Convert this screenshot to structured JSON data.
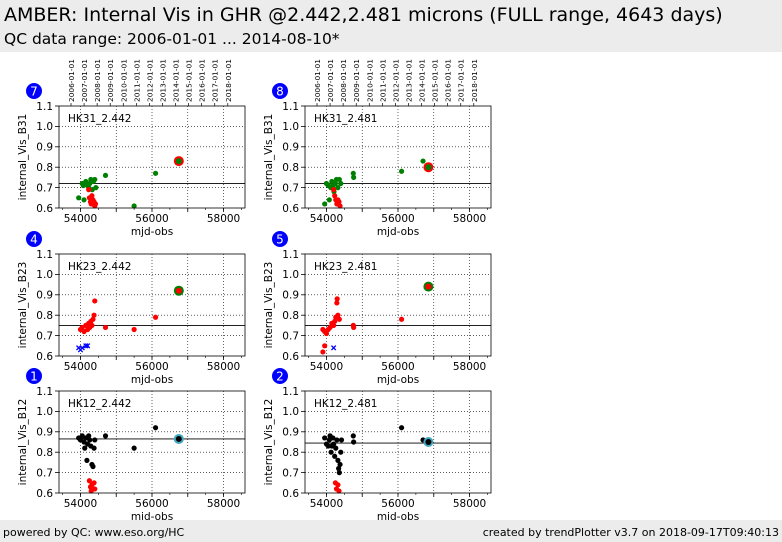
{
  "header": {
    "title": "AMBER: Internal Vis in GHR @2.442,2.481 microns (FULL range, 4643 days)",
    "subtitle": "QC data range: 2006-01-01 ... 2014-08-10*"
  },
  "footer": {
    "left": "powered by QC: www.eso.org/HC",
    "right": "created by trendPlotter v3.7 on 2018-09-17T09:40:13"
  },
  "colors": {
    "green": "#008000",
    "red": "#ff0000",
    "blue": "#0000ff",
    "black": "#000000",
    "cyan": "#40a8c0",
    "badge": "#0000ff"
  },
  "date_ticks": [
    {
      "label": "2006-01-01",
      "mjd": 53736
    },
    {
      "label": "2007-01-01",
      "mjd": 54101
    },
    {
      "label": "2008-01-01",
      "mjd": 54466
    },
    {
      "label": "2009-01-01",
      "mjd": 54832
    },
    {
      "label": "2010-01-01",
      "mjd": 55197
    },
    {
      "label": "2011-01-01",
      "mjd": 55562
    },
    {
      "label": "2012-01-01",
      "mjd": 55927
    },
    {
      "label": "2013-01-01",
      "mjd": 56293
    },
    {
      "label": "2014-01-01",
      "mjd": 56658
    },
    {
      "label": "2015-01-01",
      "mjd": 57023
    },
    {
      "label": "2016-01-01",
      "mjd": 57388
    },
    {
      "label": "2017-01-01",
      "mjd": 57754
    },
    {
      "label": "2018-01-01",
      "mjd": 58119
    }
  ],
  "chart_data": [
    {
      "type": "scatter",
      "badge": "7",
      "panel_label": "HK31_2.442",
      "xlabel": "mjd-obs",
      "ylabel": "internal_Vis_B31",
      "xlim": [
        53400,
        58600
      ],
      "ylim": [
        0.6,
        1.1
      ],
      "xticks": [
        54000,
        55000,
        56000,
        57000,
        58000
      ],
      "xtick_labels": [
        "54000",
        "",
        "56000",
        "",
        "58000"
      ],
      "yticks": [
        0.6,
        0.7,
        0.8,
        0.9,
        1.0,
        1.1
      ],
      "grid": true,
      "ref_line": 0.72,
      "series": [
        {
          "color": "green",
          "marker": "dot",
          "points": [
            [
              53950,
              0.65
            ],
            [
              54050,
              0.72
            ],
            [
              54080,
              0.71
            ],
            [
              54100,
              0.64
            ],
            [
              54120,
              0.72
            ],
            [
              54150,
              0.73
            ],
            [
              54180,
              0.72
            ],
            [
              54200,
              0.71
            ],
            [
              54230,
              0.7
            ],
            [
              54260,
              0.72
            ],
            [
              54290,
              0.74
            ],
            [
              54330,
              0.69
            ],
            [
              54360,
              0.73
            ],
            [
              54400,
              0.74
            ],
            [
              54430,
              0.7
            ],
            [
              54700,
              0.76
            ],
            [
              55500,
              0.61
            ],
            [
              56100,
              0.77
            ],
            [
              56700,
              0.83
            ]
          ]
        },
        {
          "color": "red",
          "marker": "dot",
          "points": [
            [
              54230,
              0.69
            ],
            [
              54250,
              0.65
            ],
            [
              54280,
              0.63
            ],
            [
              54300,
              0.62
            ],
            [
              54320,
              0.66
            ],
            [
              54350,
              0.64
            ],
            [
              54380,
              0.63
            ],
            [
              54400,
              0.61
            ],
            [
              54420,
              0.62
            ]
          ]
        },
        {
          "color": "red",
          "marker": "ring",
          "points": [
            [
              56750,
              0.83
            ]
          ]
        }
      ]
    },
    {
      "type": "scatter",
      "badge": "8",
      "panel_label": "HK31_2.481",
      "xlabel": "mjd-obs",
      "ylabel": "internal_Vis_B31",
      "xlim": [
        53400,
        58600
      ],
      "ylim": [
        0.6,
        1.1
      ],
      "xticks": [
        54000,
        55000,
        56000,
        57000,
        58000
      ],
      "xtick_labels": [
        "54000",
        "",
        "56000",
        "",
        "58000"
      ],
      "yticks": [
        0.6,
        0.7,
        0.8,
        0.9,
        1.0,
        1.1
      ],
      "grid": true,
      "ref_line": 0.72,
      "series": [
        {
          "color": "green",
          "marker": "dot",
          "points": [
            [
              53950,
              0.62
            ],
            [
              54000,
              0.72
            ],
            [
              54050,
              0.71
            ],
            [
              54080,
              0.64
            ],
            [
              54120,
              0.7
            ],
            [
              54150,
              0.73
            ],
            [
              54180,
              0.71
            ],
            [
              54210,
              0.68
            ],
            [
              54250,
              0.72
            ],
            [
              54280,
              0.74
            ],
            [
              54320,
              0.7
            ],
            [
              54360,
              0.74
            ],
            [
              54400,
              0.72
            ],
            [
              54750,
              0.77
            ],
            [
              54760,
              0.75
            ],
            [
              56100,
              0.78
            ],
            [
              56700,
              0.83
            ]
          ]
        },
        {
          "color": "red",
          "marker": "dot",
          "points": [
            [
              54200,
              0.69
            ],
            [
              54230,
              0.66
            ],
            [
              54260,
              0.64
            ],
            [
              54290,
              0.62
            ],
            [
              54320,
              0.64
            ],
            [
              54350,
              0.63
            ],
            [
              54380,
              0.61
            ]
          ]
        },
        {
          "color": "red",
          "marker": "ring",
          "points": [
            [
              56850,
              0.8
            ]
          ]
        }
      ]
    },
    {
      "type": "scatter",
      "badge": "4",
      "panel_label": "HK23_2.442",
      "xlabel": "mjd-obs",
      "ylabel": "internal_Vis_B23",
      "xlim": [
        53400,
        58600
      ],
      "ylim": [
        0.6,
        1.1
      ],
      "xticks": [
        54000,
        55000,
        56000,
        57000,
        58000
      ],
      "xtick_labels": [
        "54000",
        "",
        "56000",
        "",
        "58000"
      ],
      "yticks": [
        0.6,
        0.7,
        0.8,
        0.9,
        1.0,
        1.1
      ],
      "grid": true,
      "ref_line": 0.75,
      "series": [
        {
          "color": "red",
          "marker": "dot",
          "points": [
            [
              54000,
              0.73
            ],
            [
              54050,
              0.74
            ],
            [
              54100,
              0.72
            ],
            [
              54150,
              0.75
            ],
            [
              54200,
              0.73
            ],
            [
              54230,
              0.76
            ],
            [
              54260,
              0.74
            ],
            [
              54290,
              0.77
            ],
            [
              54320,
              0.75
            ],
            [
              54350,
              0.78
            ],
            [
              54380,
              0.8
            ],
            [
              54400,
              0.87
            ],
            [
              54700,
              0.74
            ],
            [
              55500,
              0.73
            ],
            [
              56100,
              0.79
            ]
          ]
        },
        {
          "color": "blue",
          "marker": "x",
          "points": [
            [
              53950,
              0.64
            ],
            [
              54000,
              0.63
            ],
            [
              54050,
              0.64
            ],
            [
              54150,
              0.65
            ],
            [
              54200,
              0.65
            ]
          ]
        },
        {
          "color": "green",
          "marker": "ring",
          "points": [
            [
              56750,
              0.92
            ]
          ]
        }
      ]
    },
    {
      "type": "scatter",
      "badge": "5",
      "panel_label": "HK23_2.481",
      "xlabel": "mjd-obs",
      "ylabel": "internal_Vis_B23",
      "xlim": [
        53400,
        58600
      ],
      "ylim": [
        0.6,
        1.1
      ],
      "xticks": [
        54000,
        55000,
        56000,
        57000,
        58000
      ],
      "xtick_labels": [
        "54000",
        "",
        "56000",
        "",
        "58000"
      ],
      "yticks": [
        0.6,
        0.7,
        0.8,
        0.9,
        1.0,
        1.1
      ],
      "grid": true,
      "ref_line": 0.75,
      "series": [
        {
          "color": "red",
          "marker": "dot",
          "points": [
            [
              53900,
              0.73
            ],
            [
              53950,
              0.72
            ],
            [
              54000,
              0.71
            ],
            [
              54050,
              0.73
            ],
            [
              54100,
              0.74
            ],
            [
              54150,
              0.76
            ],
            [
              54200,
              0.75
            ],
            [
              54230,
              0.77
            ],
            [
              54260,
              0.79
            ],
            [
              54290,
              0.86
            ],
            [
              54300,
              0.88
            ],
            [
              54320,
              0.8
            ],
            [
              54360,
              0.78
            ],
            [
              54750,
              0.75
            ],
            [
              54760,
              0.74
            ],
            [
              56100,
              0.78
            ]
          ]
        },
        {
          "color": "red",
          "marker": "dot",
          "points": [
            [
              53900,
              0.62
            ],
            [
              53950,
              0.65
            ]
          ]
        },
        {
          "color": "blue",
          "marker": "x",
          "points": [
            [
              54200,
              0.64
            ]
          ]
        },
        {
          "color": "green",
          "marker": "ring",
          "points": [
            [
              56850,
              0.94
            ]
          ]
        }
      ]
    },
    {
      "type": "scatter",
      "badge": "1",
      "panel_label": "HK12_2.442",
      "xlabel": "mjd-obs",
      "ylabel": "internal_Vis_B12",
      "xlim": [
        53400,
        58600
      ],
      "ylim": [
        0.6,
        1.1
      ],
      "xticks": [
        54000,
        55000,
        56000,
        57000,
        58000
      ],
      "xtick_labels": [
        "54000",
        "",
        "56000",
        "",
        "58000"
      ],
      "yticks": [
        0.6,
        0.7,
        0.8,
        0.9,
        1.0,
        1.1
      ],
      "grid": true,
      "ref_line": 0.865,
      "series": [
        {
          "color": "black",
          "marker": "dot",
          "points": [
            [
              53950,
              0.87
            ],
            [
              54000,
              0.86
            ],
            [
              54050,
              0.88
            ],
            [
              54100,
              0.85
            ],
            [
              54120,
              0.82
            ],
            [
              54150,
              0.87
            ],
            [
              54180,
              0.76
            ],
            [
              54200,
              0.84
            ],
            [
              54230,
              0.88
            ],
            [
              54260,
              0.86
            ],
            [
              54290,
              0.83
            ],
            [
              54320,
              0.74
            ],
            [
              54350,
              0.73
            ],
            [
              54380,
              0.82
            ],
            [
              54400,
              0.86
            ],
            [
              54700,
              0.88
            ],
            [
              55500,
              0.82
            ],
            [
              56100,
              0.92
            ]
          ]
        },
        {
          "color": "red",
          "marker": "dot",
          "points": [
            [
              54250,
              0.66
            ],
            [
              54280,
              0.63
            ],
            [
              54300,
              0.61
            ],
            [
              54320,
              0.64
            ],
            [
              54350,
              0.62
            ],
            [
              54380,
              0.65
            ],
            [
              54400,
              0.62
            ]
          ]
        },
        {
          "color": "cyan",
          "marker": "ring",
          "points": [
            [
              56750,
              0.865
            ]
          ]
        }
      ]
    },
    {
      "type": "scatter",
      "badge": "2",
      "panel_label": "HK12_2.481",
      "xlabel": "mjd-obs",
      "ylabel": "internal_Vis_B12",
      "xlim": [
        53400,
        58600
      ],
      "ylim": [
        0.6,
        1.1
      ],
      "xticks": [
        54000,
        55000,
        56000,
        57000,
        58000
      ],
      "xtick_labels": [
        "54000",
        "",
        "56000",
        "",
        "58000"
      ],
      "yticks": [
        0.6,
        0.7,
        0.8,
        0.9,
        1.0,
        1.1
      ],
      "grid": true,
      "ref_line": 0.845,
      "series": [
        {
          "color": "black",
          "marker": "dot",
          "points": [
            [
              53950,
              0.87
            ],
            [
              54000,
              0.84
            ],
            [
              54050,
              0.83
            ],
            [
              54080,
              0.86
            ],
            [
              54100,
              0.88
            ],
            [
              54130,
              0.8
            ],
            [
              54150,
              0.83
            ],
            [
              54180,
              0.87
            ],
            [
              54200,
              0.84
            ],
            [
              54230,
              0.78
            ],
            [
              54260,
              0.82
            ],
            [
              54290,
              0.86
            ],
            [
              54320,
              0.76
            ],
            [
              54340,
              0.72
            ],
            [
              54360,
              0.7
            ],
            [
              54380,
              0.74
            ],
            [
              54400,
              0.8
            ],
            [
              54420,
              0.86
            ],
            [
              54750,
              0.88
            ],
            [
              54760,
              0.85
            ],
            [
              56100,
              0.92
            ],
            [
              56700,
              0.86
            ]
          ]
        },
        {
          "color": "red",
          "marker": "dot",
          "points": [
            [
              54250,
              0.65
            ],
            [
              54280,
              0.62
            ],
            [
              54320,
              0.64
            ],
            [
              54350,
              0.61
            ]
          ]
        },
        {
          "color": "cyan",
          "marker": "ring",
          "points": [
            [
              56850,
              0.85
            ]
          ]
        }
      ]
    }
  ]
}
